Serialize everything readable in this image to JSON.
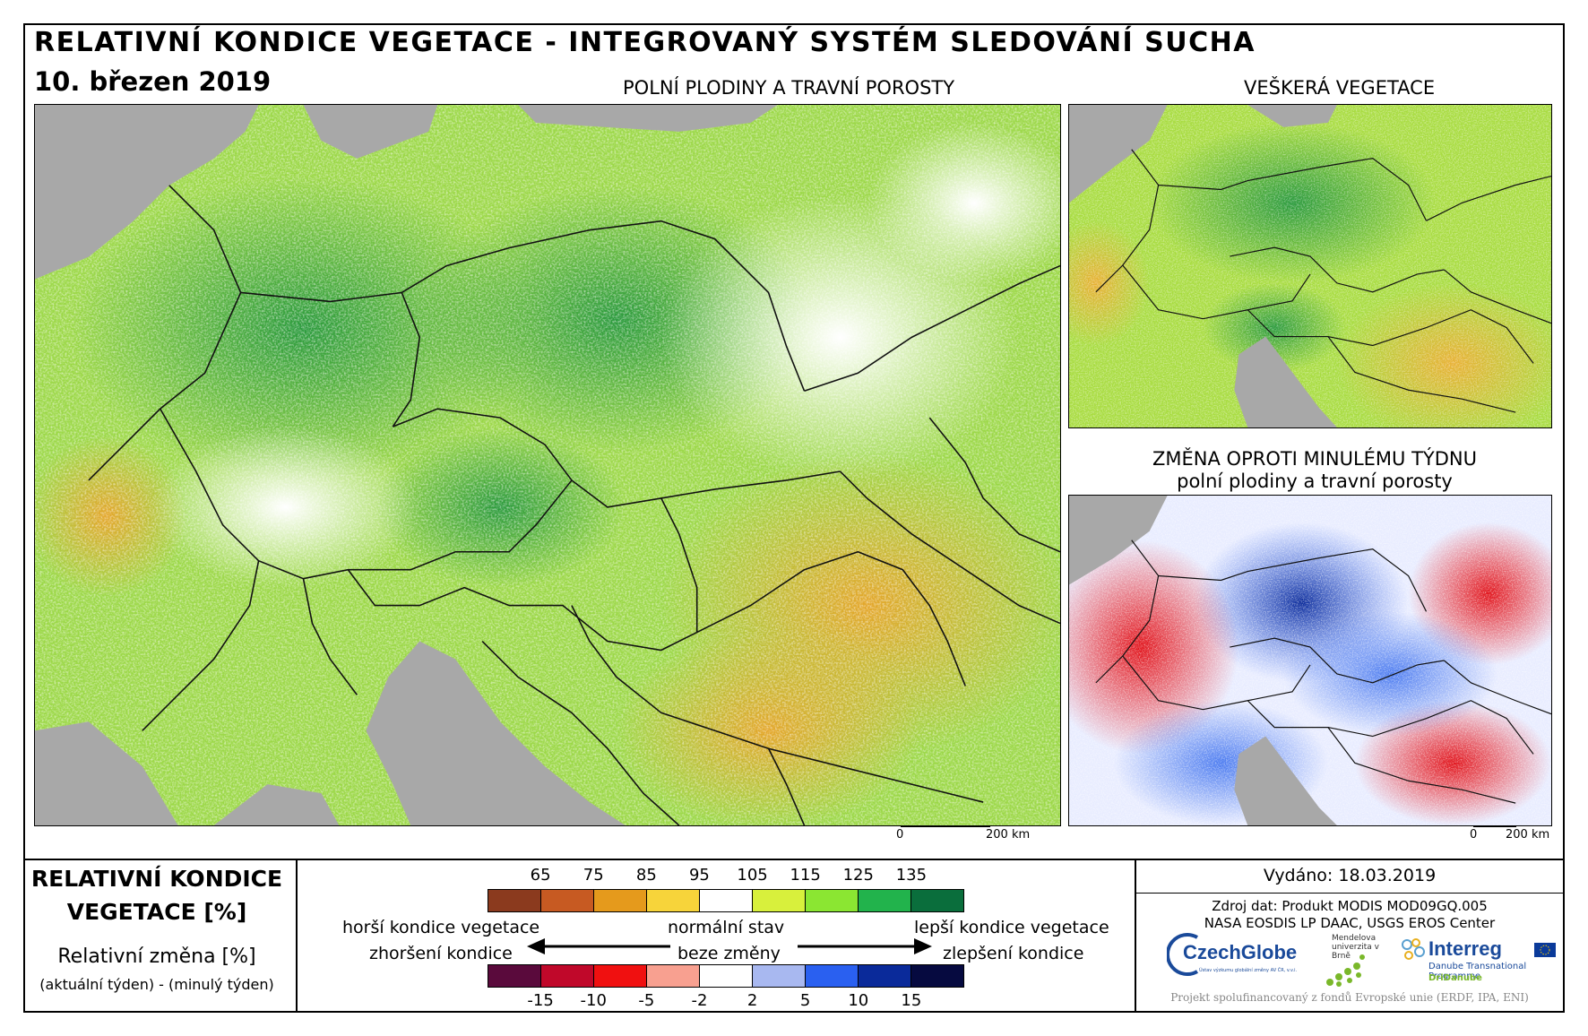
{
  "header": {
    "title": "RELATIVNÍ KONDICE VEGETACE - INTEGROVANÝ SYSTÉM SLEDOVÁNÍ SUCHA",
    "date": "10. březen 2019"
  },
  "maps": {
    "main_label": "POLNÍ PLODINY A TRAVNÍ POROSTY",
    "all_veg_label": "VEŠKERÁ VEGETACE",
    "change_label_1": "ZMĚNA OPROTI MINULÉMU TÝDNU",
    "change_label_2": "polní plodiny a travní porosty",
    "scale_zero": "0",
    "scale_km": "200 km"
  },
  "legend": {
    "title_1": "RELATIVNÍ KONDICE",
    "title_2": "VEGETACE [%]",
    "sub_1": "Relativní změna [%]",
    "sub_2": "(aktuální týden) - (minulý týden)",
    "condition_colors": [
      "#8b3a1e",
      "#c75a22",
      "#e59a1c",
      "#f7d43a",
      "#ffffff",
      "#d8f03c",
      "#8be632",
      "#22b34c",
      "#0a6e3c"
    ],
    "condition_ticks": [
      "65",
      "75",
      "85",
      "95",
      "105",
      "115",
      "125",
      "135"
    ],
    "change_colors": [
      "#5a0a3c",
      "#c0082a",
      "#f01010",
      "#f8a090",
      "#ffffff",
      "#a8b8f0",
      "#2a60f0",
      "#0a2a9a",
      "#060a40"
    ],
    "change_ticks": [
      "-15",
      "-10",
      "-5",
      "-2",
      "2",
      "5",
      "10",
      "15"
    ],
    "worse": "horší kondice vegetace",
    "normal": "normální stav",
    "better": "lepší kondice vegetace",
    "declined": "zhoršení kondice",
    "unchanged": "beze změny",
    "improved": "zlepšení kondice"
  },
  "info": {
    "issued": "Vydáno: 18.03.2019",
    "source_1": "Zdroj dat: Produkt MODIS MOD09GQ.005",
    "source_2": "NASA EOSDIS LP DAAC, USGS EROS Center",
    "czechglobe": "CzechGlobe",
    "czechglobe_sub": "Ústav výzkumu globální změny AV ČR, v.v.i.",
    "mendel": "Mendelova univerzita v Brně",
    "interreg": "Interreg",
    "interreg_sub": "Danube Transnational Programme",
    "dridanube": "DriDanube",
    "footer": "Projekt spolufinancovaný z fondů Evropské unie (ERDF, IPA, ENI)"
  }
}
